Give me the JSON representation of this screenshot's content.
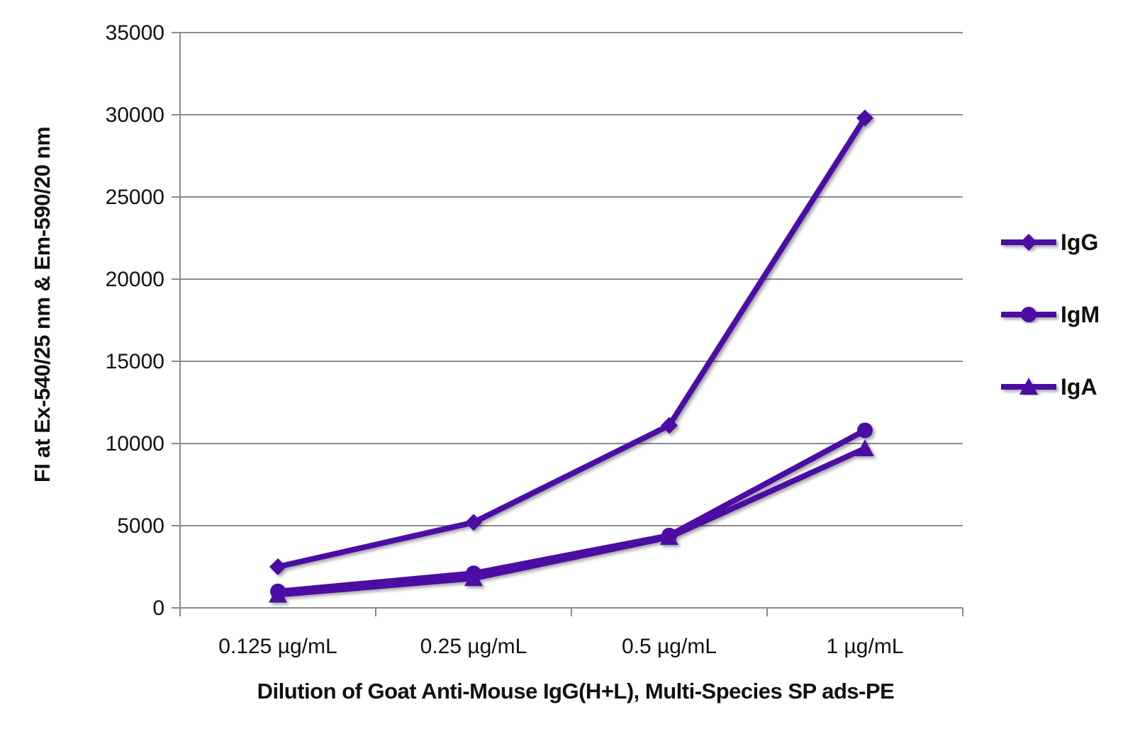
{
  "colors": {
    "series": "#4b0fa3",
    "grid": "#8c8c8c",
    "axis": "#8c8c8c"
  },
  "chart_data": {
    "type": "line",
    "title": "",
    "xlabel": "Dilution of Goat Anti-Mouse IgG(H+L), Multi-Species SP ads-PE",
    "ylabel": "FI at Ex-540/25 nm & Em-590/20 nm",
    "categories": [
      "0.125 µg/mL",
      "0.25 µg/mL",
      "0.5 µg/mL",
      "1 µg/mL"
    ],
    "ylim": [
      0,
      35000
    ],
    "yticks": [
      "0",
      "5000",
      "10000",
      "15000",
      "20000",
      "25000",
      "30000",
      "35000"
    ],
    "grid": true,
    "legend_position": "right",
    "series": [
      {
        "name": "IgG",
        "marker": "diamond",
        "values": [
          2500,
          5200,
          11100,
          29800
        ]
      },
      {
        "name": "IgM",
        "marker": "circle",
        "values": [
          1000,
          2100,
          4400,
          10800
        ]
      },
      {
        "name": "IgA",
        "marker": "triangle",
        "values": [
          800,
          1800,
          4300,
          9700
        ]
      }
    ]
  }
}
